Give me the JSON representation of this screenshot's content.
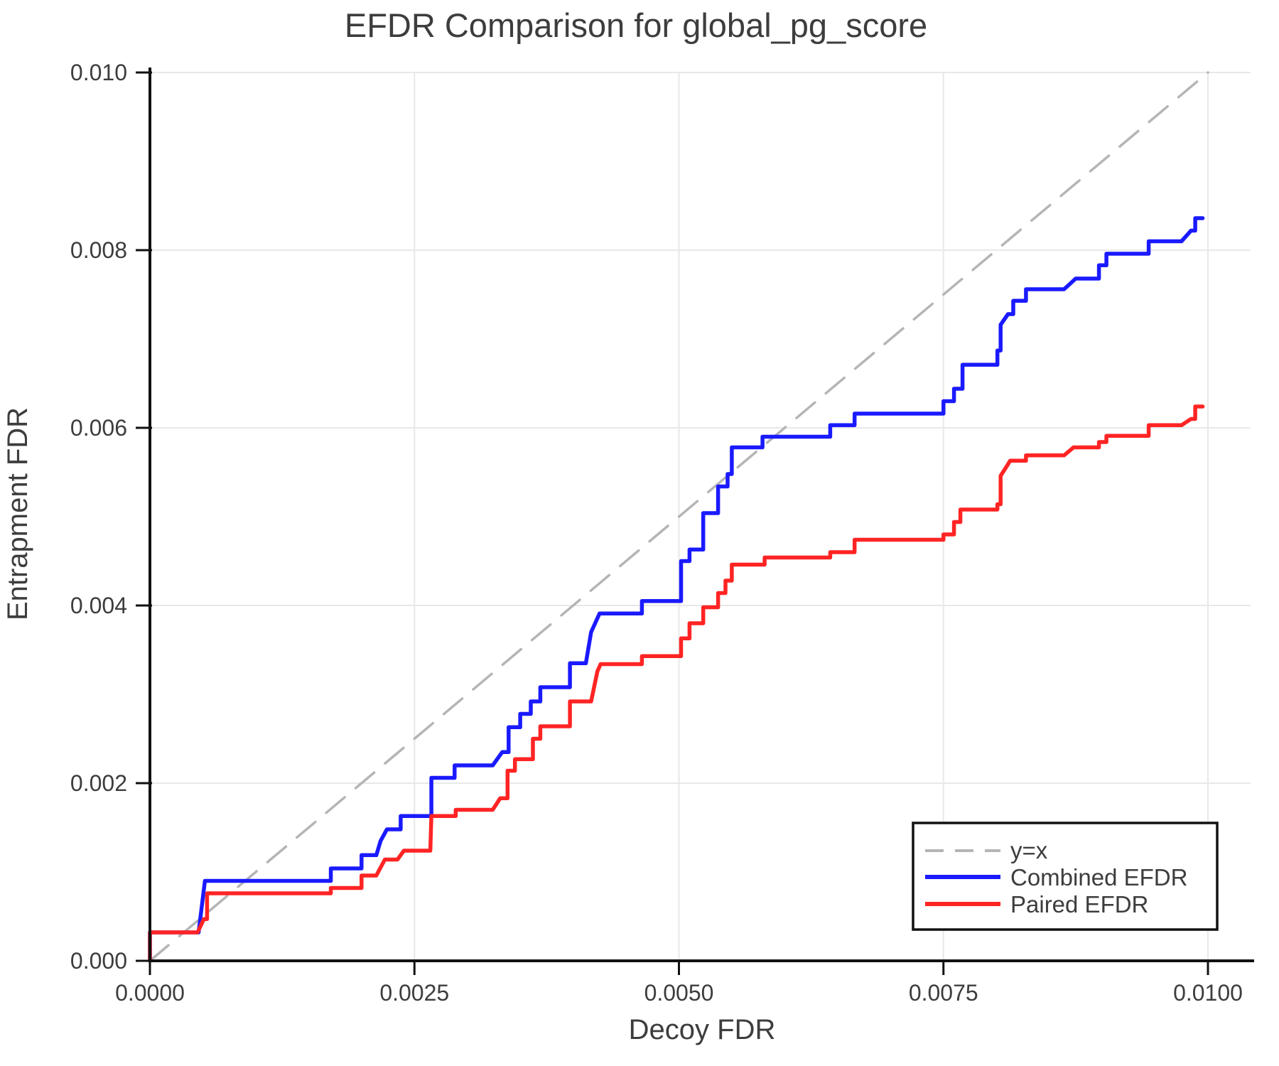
{
  "figure": {
    "title": "EFDR Comparison for global_pg_score",
    "xlabel": "Decoy FDR",
    "ylabel": "Entrapment FDR"
  },
  "legend": {
    "position": "bottom-right",
    "items": [
      {
        "label": "y=x",
        "color": "#b5b5b5",
        "style": "dashed"
      },
      {
        "label": "Combined EFDR",
        "color": "#1a1aff",
        "style": "solid"
      },
      {
        "label": "Paired EFDR",
        "color": "#ff2424",
        "style": "solid"
      }
    ]
  },
  "chart_data": {
    "type": "line",
    "title": "EFDR Comparison for global_pg_score",
    "xlabel": "Decoy FDR",
    "ylabel": "Entrapment FDR",
    "xlim": [
      0.0,
      0.01
    ],
    "ylim": [
      0.0,
      0.01
    ],
    "grid": true,
    "legend_position": "bottom-right",
    "xticks": {
      "values": [
        0.0,
        0.0025,
        0.005,
        0.0075,
        0.01
      ],
      "labels": [
        "0.0000",
        "0.0025",
        "0.0050",
        "0.0075",
        "0.0100"
      ]
    },
    "yticks": {
      "values": [
        0.0,
        0.002,
        0.004,
        0.006,
        0.008,
        0.01
      ],
      "labels": [
        "0.000",
        "0.002",
        "0.004",
        "0.006",
        "0.008",
        "0.010"
      ]
    },
    "series": [
      {
        "name": "y=x",
        "kind": "reference",
        "style": "dashed",
        "color": "#b5b5b5",
        "points": [
          [
            0.0,
            0.0
          ],
          [
            0.01,
            0.01
          ]
        ]
      },
      {
        "name": "Combined EFDR",
        "kind": "step",
        "style": "solid",
        "color": "#1a1aff",
        "points": [
          [
            0.0,
            0.0
          ],
          [
            0.0,
            0.00032
          ],
          [
            0.00046,
            0.00032
          ],
          [
            0.00052,
            0.0009
          ],
          [
            0.00171,
            0.0009
          ],
          [
            0.00171,
            0.00104
          ],
          [
            0.002,
            0.00104
          ],
          [
            0.002,
            0.00119
          ],
          [
            0.00214,
            0.00119
          ],
          [
            0.00218,
            0.00135
          ],
          [
            0.00224,
            0.00148
          ],
          [
            0.00237,
            0.00148
          ],
          [
            0.00237,
            0.00163
          ],
          [
            0.00266,
            0.00163
          ],
          [
            0.00266,
            0.00206
          ],
          [
            0.00288,
            0.00206
          ],
          [
            0.00288,
            0.0022
          ],
          [
            0.00324,
            0.0022
          ],
          [
            0.00333,
            0.00235
          ],
          [
            0.00339,
            0.00235
          ],
          [
            0.00339,
            0.00263
          ],
          [
            0.0035,
            0.00263
          ],
          [
            0.0035,
            0.00278
          ],
          [
            0.0036,
            0.00278
          ],
          [
            0.0036,
            0.00292
          ],
          [
            0.00369,
            0.00292
          ],
          [
            0.00369,
            0.00308
          ],
          [
            0.00397,
            0.00308
          ],
          [
            0.00397,
            0.00335
          ],
          [
            0.00412,
            0.00335
          ],
          [
            0.00417,
            0.0037
          ],
          [
            0.00425,
            0.00391
          ],
          [
            0.00465,
            0.00391
          ],
          [
            0.00465,
            0.00405
          ],
          [
            0.00502,
            0.00405
          ],
          [
            0.00502,
            0.0045
          ],
          [
            0.0051,
            0.0045
          ],
          [
            0.0051,
            0.00463
          ],
          [
            0.00523,
            0.00463
          ],
          [
            0.00523,
            0.00504
          ],
          [
            0.00537,
            0.00504
          ],
          [
            0.00537,
            0.00534
          ],
          [
            0.00546,
            0.00534
          ],
          [
            0.00546,
            0.00548
          ],
          [
            0.0055,
            0.00548
          ],
          [
            0.0055,
            0.00578
          ],
          [
            0.00579,
            0.00578
          ],
          [
            0.00579,
            0.0059
          ],
          [
            0.00643,
            0.0059
          ],
          [
            0.00643,
            0.00603
          ],
          [
            0.00666,
            0.00603
          ],
          [
            0.00666,
            0.00616
          ],
          [
            0.0075,
            0.00616
          ],
          [
            0.0075,
            0.0063
          ],
          [
            0.0076,
            0.0063
          ],
          [
            0.0076,
            0.00644
          ],
          [
            0.00768,
            0.00644
          ],
          [
            0.00768,
            0.00671
          ],
          [
            0.00801,
            0.00671
          ],
          [
            0.00801,
            0.00687
          ],
          [
            0.00804,
            0.00687
          ],
          [
            0.00804,
            0.00716
          ],
          [
            0.00811,
            0.00728
          ],
          [
            0.00816,
            0.00728
          ],
          [
            0.00816,
            0.00743
          ],
          [
            0.00828,
            0.00743
          ],
          [
            0.00828,
            0.00756
          ],
          [
            0.00864,
            0.00756
          ],
          [
            0.00875,
            0.00768
          ],
          [
            0.00897,
            0.00768
          ],
          [
            0.00897,
            0.00783
          ],
          [
            0.00904,
            0.00783
          ],
          [
            0.00904,
            0.00796
          ],
          [
            0.00944,
            0.00796
          ],
          [
            0.00944,
            0.0081
          ],
          [
            0.00975,
            0.0081
          ],
          [
            0.00984,
            0.00822
          ],
          [
            0.00988,
            0.00822
          ],
          [
            0.00988,
            0.00836
          ],
          [
            0.00995,
            0.00836
          ]
        ]
      },
      {
        "name": "Paired EFDR",
        "kind": "step",
        "style": "solid",
        "color": "#ff2424",
        "points": [
          [
            0.0,
            0.0
          ],
          [
            0.0,
            0.00032
          ],
          [
            0.00045,
            0.00032
          ],
          [
            0.00051,
            0.00047
          ],
          [
            0.00054,
            0.00047
          ],
          [
            0.00054,
            0.00076
          ],
          [
            0.00171,
            0.00076
          ],
          [
            0.00171,
            0.00082
          ],
          [
            0.002,
            0.00082
          ],
          [
            0.002,
            0.00096
          ],
          [
            0.00214,
            0.00096
          ],
          [
            0.00222,
            0.00114
          ],
          [
            0.00234,
            0.00114
          ],
          [
            0.0024,
            0.00124
          ],
          [
            0.00265,
            0.00124
          ],
          [
            0.00266,
            0.00163
          ],
          [
            0.00289,
            0.00163
          ],
          [
            0.00289,
            0.0017
          ],
          [
            0.00324,
            0.0017
          ],
          [
            0.00331,
            0.00183
          ],
          [
            0.00338,
            0.00183
          ],
          [
            0.00338,
            0.00214
          ],
          [
            0.00345,
            0.00214
          ],
          [
            0.00345,
            0.00227
          ],
          [
            0.00362,
            0.00227
          ],
          [
            0.00362,
            0.0025
          ],
          [
            0.00369,
            0.0025
          ],
          [
            0.00369,
            0.00264
          ],
          [
            0.00397,
            0.00264
          ],
          [
            0.00397,
            0.00292
          ],
          [
            0.00417,
            0.00292
          ],
          [
            0.00423,
            0.00326
          ],
          [
            0.00426,
            0.00334
          ],
          [
            0.00465,
            0.00334
          ],
          [
            0.00465,
            0.00343
          ],
          [
            0.00502,
            0.00343
          ],
          [
            0.00502,
            0.00363
          ],
          [
            0.0051,
            0.00363
          ],
          [
            0.0051,
            0.0038
          ],
          [
            0.00523,
            0.0038
          ],
          [
            0.00523,
            0.00398
          ],
          [
            0.00537,
            0.00398
          ],
          [
            0.00537,
            0.00414
          ],
          [
            0.00544,
            0.00414
          ],
          [
            0.00544,
            0.00428
          ],
          [
            0.0055,
            0.00428
          ],
          [
            0.0055,
            0.00446
          ],
          [
            0.00581,
            0.00446
          ],
          [
            0.00581,
            0.00454
          ],
          [
            0.00643,
            0.00454
          ],
          [
            0.00643,
            0.0046
          ],
          [
            0.00666,
            0.0046
          ],
          [
            0.00666,
            0.00474
          ],
          [
            0.0075,
            0.00474
          ],
          [
            0.0075,
            0.0048
          ],
          [
            0.0076,
            0.0048
          ],
          [
            0.0076,
            0.00494
          ],
          [
            0.00766,
            0.00494
          ],
          [
            0.00766,
            0.00508
          ],
          [
            0.00801,
            0.00508
          ],
          [
            0.00801,
            0.00514
          ],
          [
            0.00804,
            0.00514
          ],
          [
            0.00804,
            0.00546
          ],
          [
            0.0081,
            0.00557
          ],
          [
            0.00813,
            0.00563
          ],
          [
            0.00828,
            0.00563
          ],
          [
            0.00828,
            0.00569
          ],
          [
            0.00864,
            0.00569
          ],
          [
            0.00873,
            0.00578
          ],
          [
            0.00897,
            0.00578
          ],
          [
            0.00897,
            0.00584
          ],
          [
            0.00904,
            0.00584
          ],
          [
            0.00904,
            0.00591
          ],
          [
            0.00944,
            0.00591
          ],
          [
            0.00944,
            0.00603
          ],
          [
            0.00975,
            0.00603
          ],
          [
            0.00984,
            0.0061
          ],
          [
            0.00988,
            0.0061
          ],
          [
            0.00988,
            0.00624
          ],
          [
            0.00995,
            0.00624
          ]
        ]
      }
    ]
  },
  "style_colors": {
    "grid": "#e8e8e8",
    "spine": "#111111",
    "text": "#3d3d3d",
    "legend_border": "#111111",
    "legend_background": "#ffffff"
  }
}
